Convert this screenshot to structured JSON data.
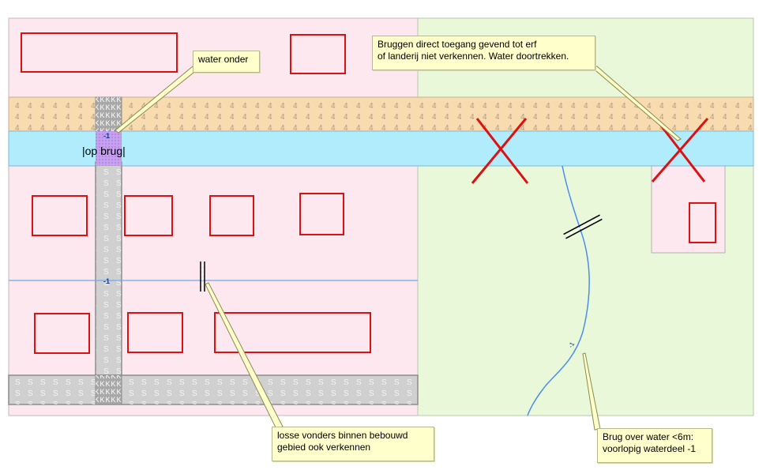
{
  "labels": {
    "bridge_label": "|op brug|",
    "level_minus1": "-1",
    "level_minus1_small": "-1",
    "level_minus1_stream": "-1",
    "fill_agri": "4",
    "fill_paved": "S",
    "fill_bridge": "K"
  },
  "notes": {
    "water_under": "water onder",
    "bridges_line1": "Bruggen direct toegang gevend tot erf",
    "bridges_line2": "of landerij niet verkennen. Water doortrekken.",
    "loose_line1": "losse vonders binnen bebouwd",
    "loose_line2": "gebied ook verkennen",
    "small_bridge_line1": "Brug over water <6m:",
    "small_bridge_line2": "voorlopig waterdeel -1"
  },
  "colors": {
    "built_area": "#fce8ee",
    "agricultural": "#e8f8d8",
    "road_band": "#f8dcb0",
    "water": "#b0ecfc",
    "road_paved": "#d0d0d0",
    "bridge": "#c8a0f0",
    "building_outline": "#dd1111",
    "cross": "#dd1111",
    "stream": "#4c8ef0",
    "note_bg": "#ffffcc"
  }
}
